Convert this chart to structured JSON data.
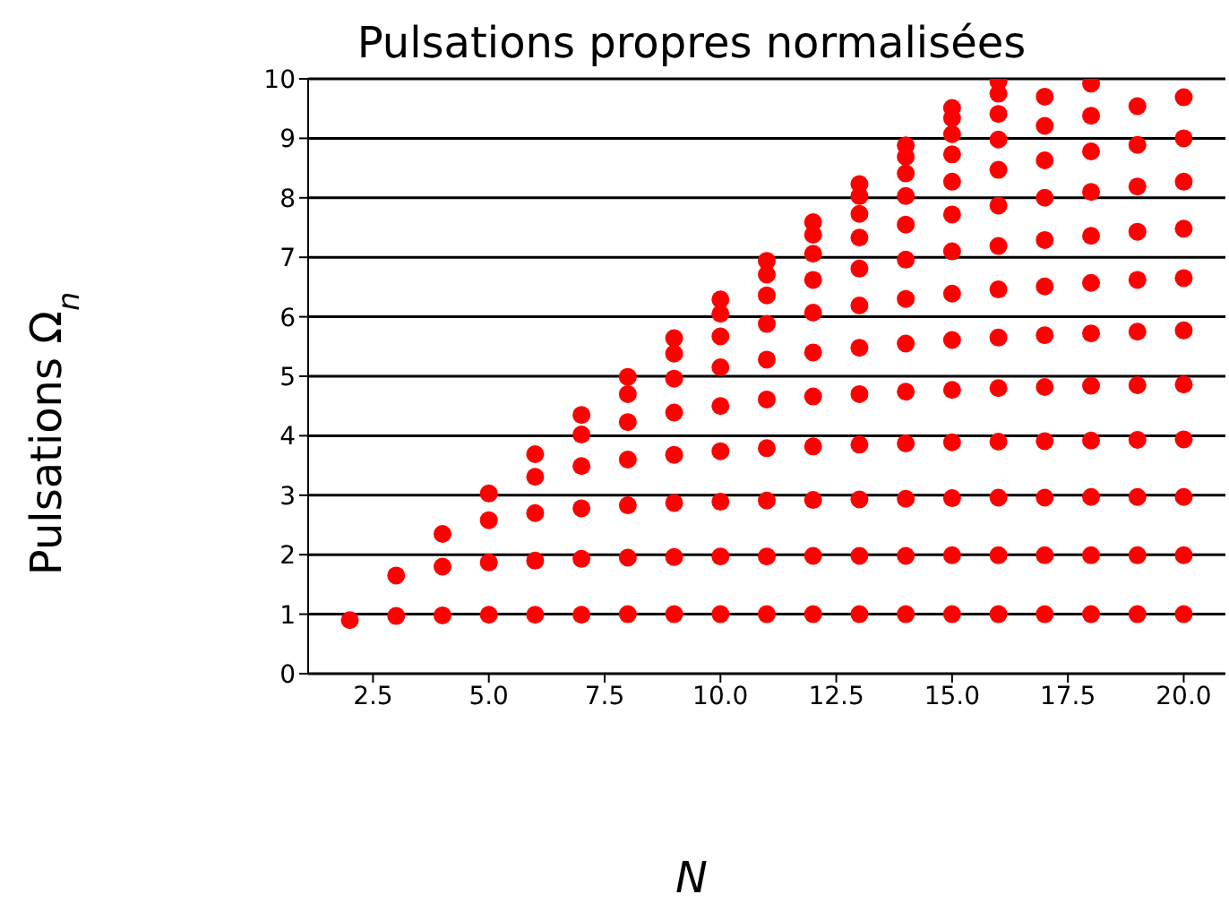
{
  "chart_data": {
    "type": "scatter",
    "title": "Pulsations propres normalisées",
    "xlabel": "N",
    "ylabel": "Pulsations Ω$_{n}$",
    "x": [
      2,
      3,
      3,
      4,
      4,
      4,
      5,
      5,
      5,
      5,
      6,
      6,
      6,
      6,
      6,
      7,
      7,
      7,
      7,
      7,
      7,
      8,
      8,
      8,
      8,
      8,
      8,
      8,
      9,
      9,
      9,
      9,
      9,
      9,
      9,
      9,
      10,
      10,
      10,
      10,
      10,
      10,
      10,
      10,
      10,
      11,
      11,
      11,
      11,
      11,
      11,
      11,
      11,
      11,
      11,
      12,
      12,
      12,
      12,
      12,
      12,
      12,
      12,
      12,
      12,
      12,
      13,
      13,
      13,
      13,
      13,
      13,
      13,
      13,
      13,
      13,
      13,
      13,
      14,
      14,
      14,
      14,
      14,
      14,
      14,
      14,
      14,
      14,
      14,
      14,
      14,
      15,
      15,
      15,
      15,
      15,
      15,
      15,
      15,
      15,
      15,
      15,
      15,
      15,
      15,
      16,
      16,
      16,
      16,
      16,
      16,
      16,
      16,
      16,
      16,
      16,
      16,
      16,
      16,
      17,
      17,
      17,
      17,
      17,
      17,
      17,
      17,
      17,
      17,
      17,
      17,
      18,
      18,
      18,
      18,
      18,
      18,
      18,
      18,
      18,
      18,
      18,
      18,
      19,
      19,
      19,
      19,
      19,
      19,
      19,
      19,
      19,
      19,
      19,
      20,
      20,
      20,
      20,
      20,
      20,
      20,
      20,
      20,
      20,
      20
    ],
    "series": [
      {
        "color": "#ff0000",
        "values": [
          0.9,
          0.97,
          1.65,
          0.98,
          1.8,
          2.35,
          0.99,
          1.87,
          2.58,
          3.03,
          0.99,
          1.9,
          2.7,
          3.31,
          3.69,
          0.99,
          1.93,
          2.78,
          3.49,
          4.02,
          4.35,
          1.0,
          1.95,
          2.83,
          3.6,
          4.23,
          4.7,
          4.99,
          1.0,
          1.96,
          2.87,
          3.68,
          4.39,
          4.96,
          5.38,
          5.64,
          1.0,
          1.97,
          2.89,
          3.74,
          4.5,
          5.15,
          5.67,
          6.05,
          6.29,
          1.0,
          1.97,
          2.91,
          3.79,
          4.61,
          5.28,
          5.88,
          6.36,
          6.71,
          6.94,
          1.0,
          1.98,
          2.92,
          3.82,
          4.66,
          5.4,
          6.07,
          6.62,
          7.06,
          7.38,
          7.59,
          1.0,
          1.98,
          2.93,
          3.85,
          4.7,
          5.48,
          6.19,
          6.81,
          7.33,
          7.73,
          8.03,
          8.23,
          1.0,
          1.98,
          2.94,
          3.87,
          4.74,
          5.55,
          6.3,
          6.96,
          7.55,
          8.03,
          8.41,
          8.69,
          8.88,
          1.0,
          1.99,
          2.95,
          3.89,
          4.77,
          5.61,
          6.39,
          7.1,
          7.72,
          8.27,
          8.73,
          9.07,
          9.34,
          9.51,
          1.0,
          1.99,
          2.96,
          3.9,
          4.8,
          5.65,
          6.46,
          7.19,
          7.87,
          8.47,
          8.98,
          9.41,
          9.75,
          9.96,
          1.0,
          1.99,
          2.96,
          3.91,
          4.82,
          5.69,
          6.51,
          7.29,
          8.0,
          8.63,
          9.21,
          9.7,
          1.0,
          1.99,
          2.97,
          3.92,
          4.84,
          5.72,
          6.57,
          7.36,
          8.1,
          8.78,
          9.38,
          9.92,
          1.0,
          1.99,
          2.97,
          3.93,
          4.85,
          5.75,
          6.62,
          7.43,
          8.19,
          8.89,
          9.54,
          1.0,
          1.99,
          2.97,
          3.94,
          4.86,
          5.77,
          6.65,
          7.48,
          8.27,
          9.0,
          9.69
        ]
      }
    ],
    "xlim": [
      1.1,
      20.9
    ],
    "xticks": [
      {
        "value": 2.5,
        "label": "2.5"
      },
      {
        "value": 5,
        "label": "5.0"
      },
      {
        "value": 7.5,
        "label": "7.5"
      },
      {
        "value": 10,
        "label": "10.0"
      },
      {
        "value": 12.5,
        "label": "12.5"
      },
      {
        "value": 15,
        "label": "15.0"
      },
      {
        "value": 17.5,
        "label": "17.5"
      },
      {
        "value": 20,
        "label": "20.0"
      }
    ],
    "ylim": [
      0,
      10
    ],
    "yticks": [
      0,
      1,
      2,
      3,
      4,
      5,
      6,
      7,
      8,
      9,
      10
    ],
    "grid": "y",
    "marker": "circle",
    "legend": false
  }
}
